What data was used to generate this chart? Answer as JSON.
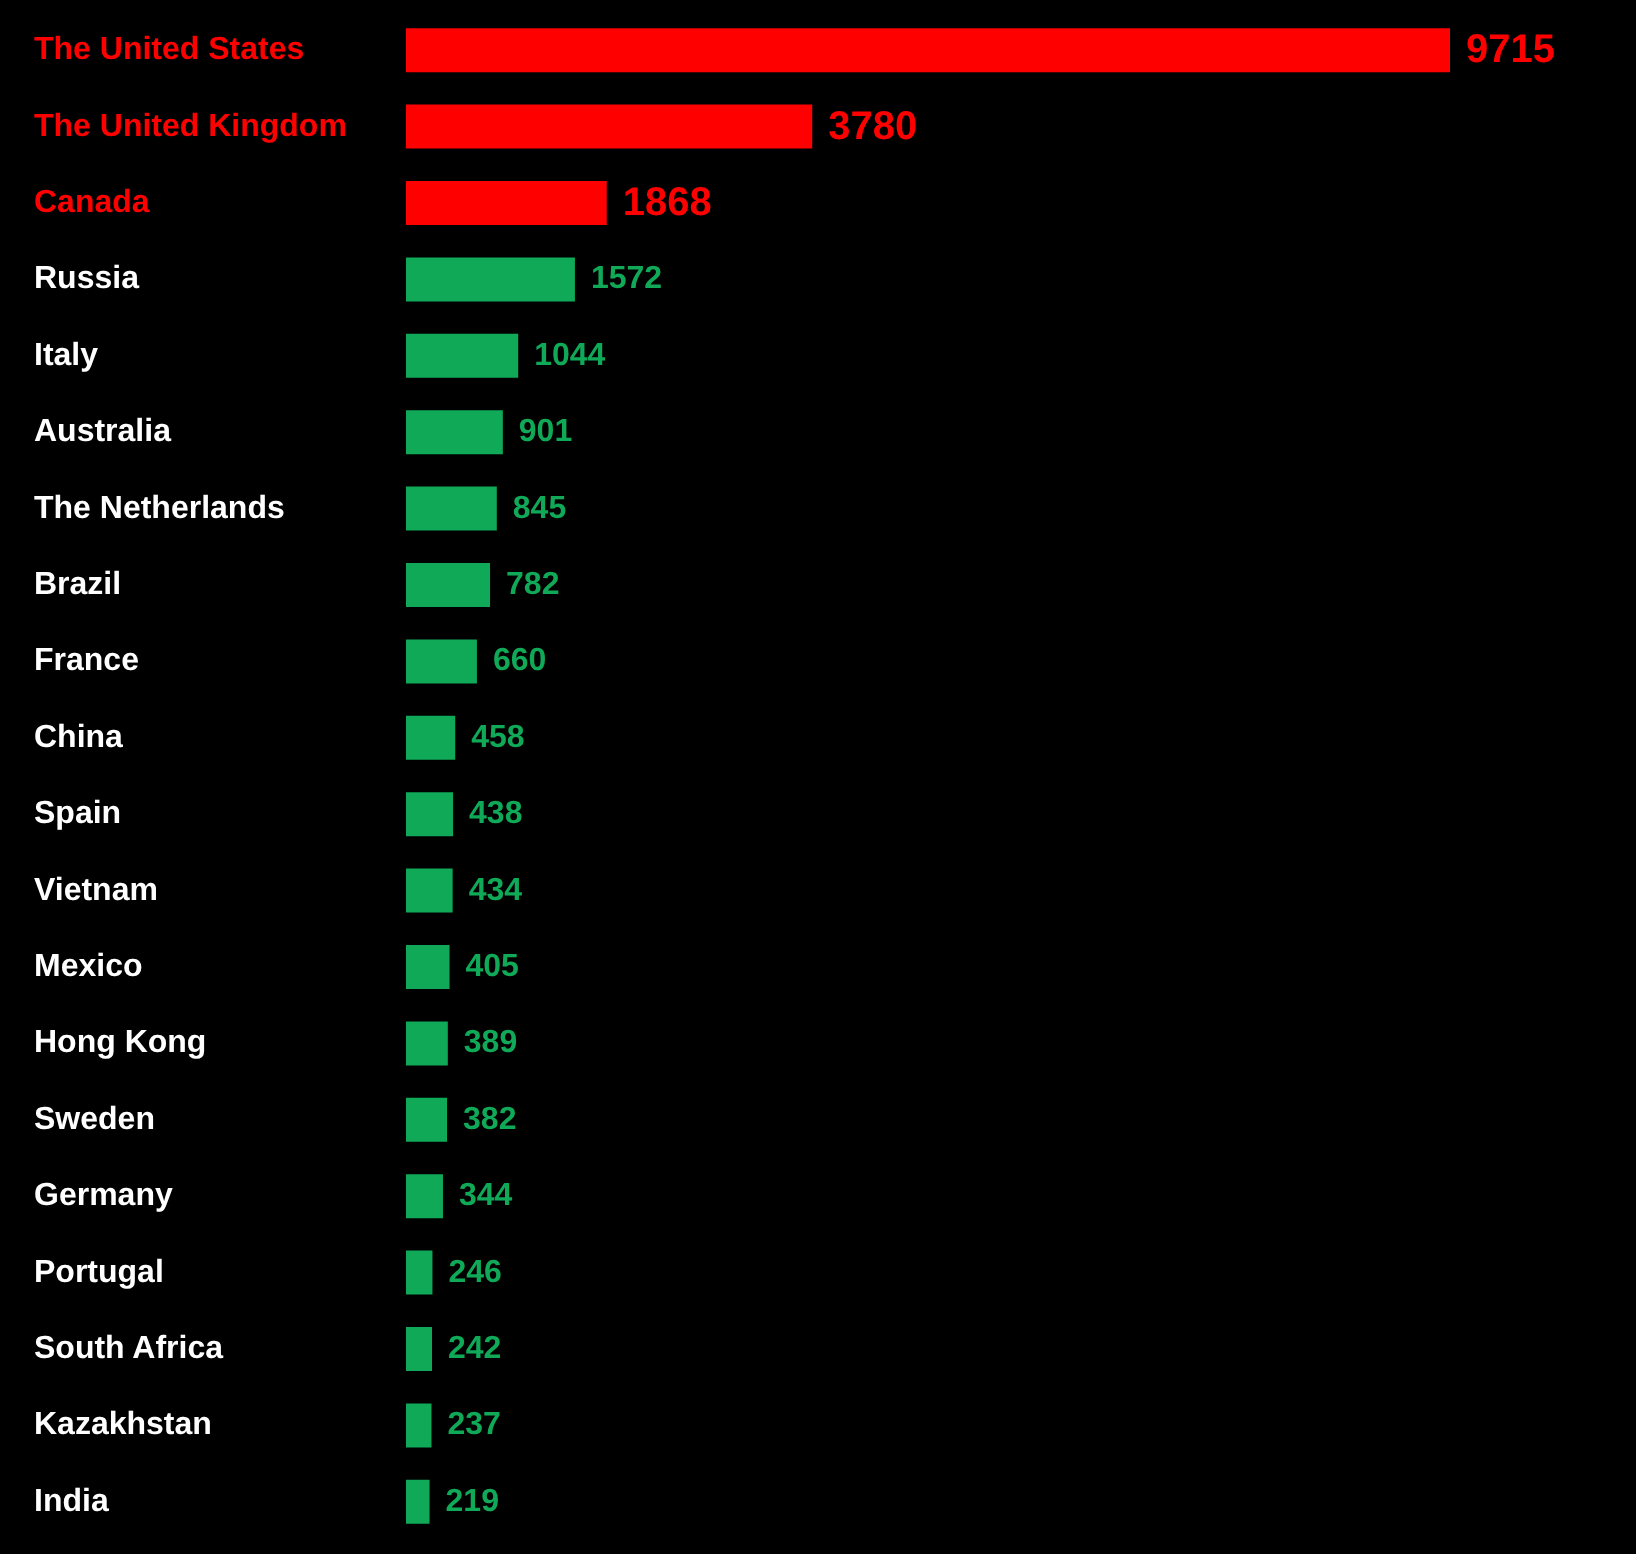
{
  "chart_data": {
    "type": "bar",
    "orientation": "horizontal",
    "data_labels": true,
    "categories": [
      "The United States",
      "The United Kingdom",
      "Canada",
      "Russia",
      "Italy",
      "Australia",
      "The Netherlands",
      "Brazil",
      "France",
      "China",
      "Spain",
      "Vietnam",
      "Mexico",
      "Hong Kong",
      "Sweden",
      "Germany",
      "Portugal",
      "South Africa",
      "Kazakhstan",
      "India"
    ],
    "values": [
      9715,
      3780,
      1868,
      1572,
      1044,
      901,
      845,
      782,
      660,
      458,
      438,
      434,
      405,
      389,
      382,
      344,
      246,
      242,
      237,
      219
    ],
    "colors": [
      "#ff0000",
      "#ff0000",
      "#ff0000",
      "#0fa958",
      "#0fa958",
      "#0fa958",
      "#0fa958",
      "#0fa958",
      "#0fa958",
      "#0fa958",
      "#0fa958",
      "#0fa958",
      "#0fa958",
      "#0fa958",
      "#0fa958",
      "#0fa958",
      "#0fa958",
      "#0fa958",
      "#0fa958",
      "#0fa958"
    ]
  }
}
